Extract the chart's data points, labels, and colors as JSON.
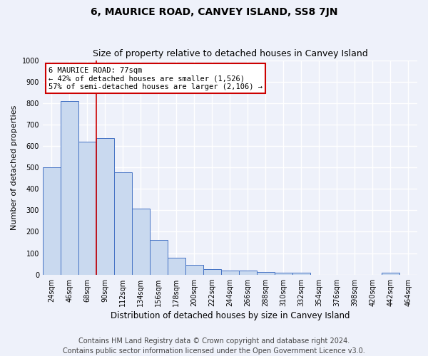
{
  "title": "6, MAURICE ROAD, CANVEY ISLAND, SS8 7JN",
  "subtitle": "Size of property relative to detached houses in Canvey Island",
  "xlabel": "Distribution of detached houses by size in Canvey Island",
  "ylabel": "Number of detached properties",
  "footer": "Contains HM Land Registry data © Crown copyright and database right 2024.\nContains public sector information licensed under the Open Government Licence v3.0.",
  "categories": [
    "24sqm",
    "46sqm",
    "68sqm",
    "90sqm",
    "112sqm",
    "134sqm",
    "156sqm",
    "178sqm",
    "200sqm",
    "222sqm",
    "244sqm",
    "266sqm",
    "288sqm",
    "310sqm",
    "332sqm",
    "354sqm",
    "376sqm",
    "398sqm",
    "420sqm",
    "442sqm",
    "464sqm"
  ],
  "values": [
    500,
    808,
    620,
    638,
    478,
    308,
    163,
    78,
    45,
    25,
    20,
    18,
    12,
    10,
    8,
    0,
    0,
    0,
    0,
    10,
    0
  ],
  "bar_color": "#c9d9ef",
  "bar_edge_color": "#4472c4",
  "property_line_index": 2.5,
  "annotation_title": "6 MAURICE ROAD: 77sqm",
  "annotation_line1": "← 42% of detached houses are smaller (1,526)",
  "annotation_line2": "57% of semi-detached houses are larger (2,106) →",
  "annotation_box_color": "#ffffff",
  "annotation_box_edge_color": "#cc0000",
  "vline_color": "#cc0000",
  "ylim": [
    0,
    1000
  ],
  "yticks": [
    0,
    100,
    200,
    300,
    400,
    500,
    600,
    700,
    800,
    900,
    1000
  ],
  "bg_color": "#eef1fa",
  "fig_bg_color": "#eef1fa",
  "grid_color": "#ffffff",
  "title_fontsize": 10,
  "subtitle_fontsize": 9,
  "footer_fontsize": 7,
  "ylabel_fontsize": 8,
  "xlabel_fontsize": 8.5,
  "annotation_fontsize": 7.5,
  "tick_fontsize": 7
}
